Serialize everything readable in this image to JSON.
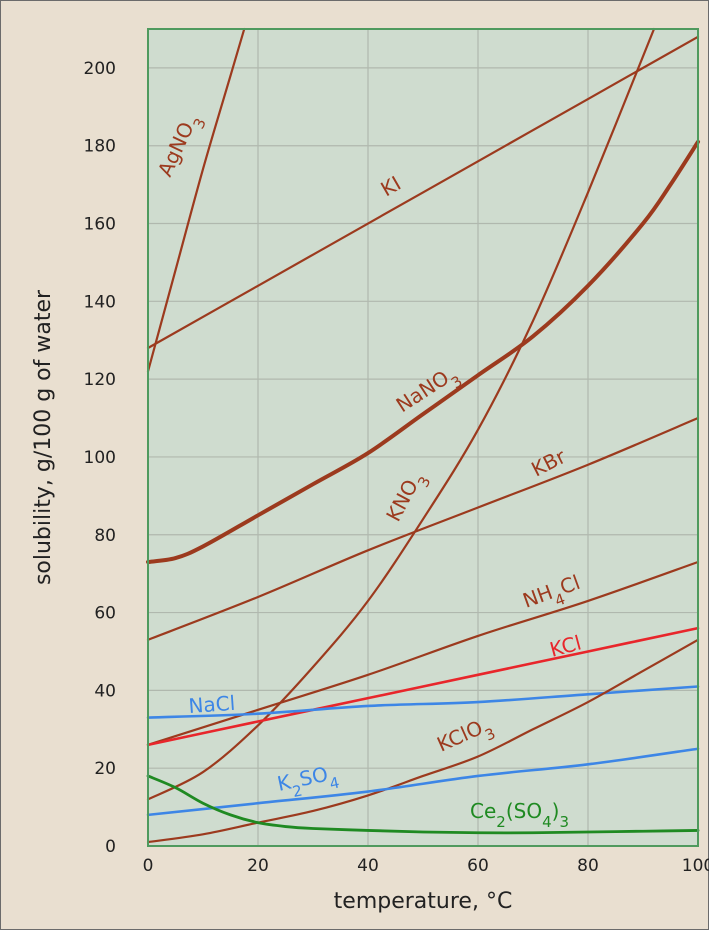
{
  "chart_data": {
    "type": "line",
    "title": "",
    "xlabel": "temperature, °C",
    "ylabel": "solubility, g/100 g of water",
    "xlim": [
      0,
      100
    ],
    "ylim": [
      0,
      210
    ],
    "grid": true,
    "x_ticks": [
      "0",
      "20",
      "40",
      "60",
      "80",
      "100"
    ],
    "y_ticks": [
      "0",
      "20",
      "40",
      "60",
      "80",
      "100",
      "120",
      "140",
      "160",
      "180",
      "200"
    ],
    "colors": {
      "plot_bg": "#cfdccf",
      "plot_border": "#4f9a5e",
      "grid": "#b0b8ae",
      "brown": "#9c3a1e",
      "red": "#e8262b",
      "blue": "#3d86e6",
      "green": "#1f8a22",
      "page_bg": "#e9dfd0"
    },
    "series": [
      {
        "name": "AgNO₃",
        "label_text": "AgNO3",
        "color": "#9c3a1e",
        "width": 2.2,
        "x": [
          0,
          5,
          10,
          15,
          17.5
        ],
        "y": [
          122,
          148,
          174,
          198,
          210
        ]
      },
      {
        "name": "KI",
        "label_text": "KI",
        "color": "#9c3a1e",
        "width": 2.2,
        "x": [
          0,
          20,
          40,
          60,
          80,
          100
        ],
        "y": [
          128,
          144,
          160,
          176,
          192,
          208
        ]
      },
      {
        "name": "NaNO₃",
        "label_text": "NaNO3",
        "color": "#9c3a1e",
        "width": 4,
        "x": [
          0,
          5,
          10,
          20,
          30,
          40,
          50,
          60,
          70,
          80,
          90,
          95,
          100
        ],
        "y": [
          73,
          74,
          77,
          85,
          93,
          101,
          111,
          121,
          131,
          144,
          160,
          170,
          181
        ]
      },
      {
        "name": "KNO₃",
        "label_text": "KNO3",
        "color": "#9c3a1e",
        "width": 2.2,
        "x": [
          0,
          10,
          20,
          30,
          40,
          50,
          60,
          70,
          80,
          92
        ],
        "y": [
          12,
          19,
          31,
          46,
          63,
          84,
          107,
          135,
          168,
          210
        ]
      },
      {
        "name": "KBr",
        "label_text": "KBr",
        "color": "#9c3a1e",
        "width": 2.2,
        "x": [
          0,
          20,
          40,
          60,
          80,
          100
        ],
        "y": [
          53,
          64,
          76,
          87,
          98,
          110
        ]
      },
      {
        "name": "NH₄Cl",
        "label_text": "NH4Cl",
        "color": "#9c3a1e",
        "width": 2.2,
        "x": [
          0,
          20,
          40,
          60,
          80,
          100
        ],
        "y": [
          26,
          35,
          44,
          54,
          63,
          73
        ]
      },
      {
        "name": "KCl",
        "label_text": "KCl",
        "color": "#e8262b",
        "width": 2.6,
        "x": [
          0,
          20,
          40,
          60,
          80,
          100
        ],
        "y": [
          26,
          32,
          38,
          44,
          50,
          56
        ]
      },
      {
        "name": "NaCl",
        "label_text": "NaCl",
        "color": "#3d86e6",
        "width": 2.6,
        "x": [
          0,
          20,
          40,
          60,
          80,
          100
        ],
        "y": [
          33,
          34,
          36,
          37,
          39,
          41
        ]
      },
      {
        "name": "KClO₃",
        "label_text": "KClO3",
        "color": "#9c3a1e",
        "width": 2.2,
        "x": [
          0,
          10,
          20,
          30,
          40,
          50,
          60,
          70,
          80,
          90,
          100
        ],
        "y": [
          1,
          3,
          6,
          9,
          13,
          18,
          23,
          30,
          37,
          45,
          53
        ]
      },
      {
        "name": "K₂SO₄",
        "label_text": "K2SO4",
        "color": "#3d86e6",
        "width": 2.6,
        "x": [
          0,
          20,
          40,
          60,
          80,
          100
        ],
        "y": [
          8,
          11,
          14,
          18,
          21,
          25
        ]
      },
      {
        "name": "Ce₂(SO₄)₃",
        "label_text": "Ce2(SO4)3",
        "color": "#1f8a22",
        "width": 2.8,
        "x": [
          0,
          5,
          10,
          15,
          20,
          25,
          30,
          40,
          50,
          60,
          70,
          80,
          90,
          100
        ],
        "y": [
          18,
          15,
          11,
          8,
          6,
          5,
          4.5,
          4,
          3.6,
          3.4,
          3.4,
          3.6,
          3.8,
          4
        ]
      }
    ]
  }
}
